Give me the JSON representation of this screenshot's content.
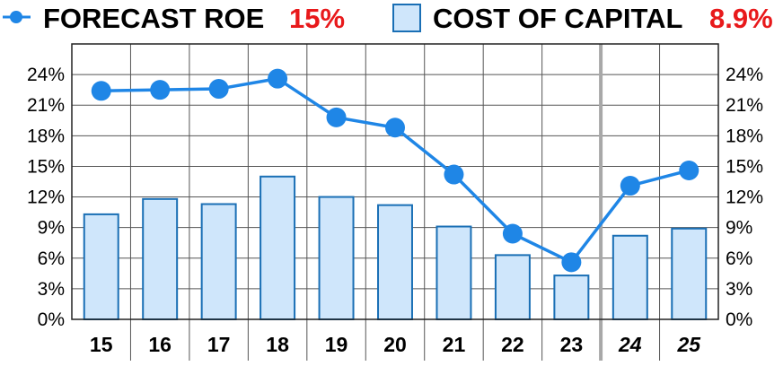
{
  "legend": {
    "line_label": "FORECAST ROE",
    "line_value": "15%",
    "bar_label": "COST OF CAPITAL",
    "bar_value": "8.9%"
  },
  "chart_data": {
    "type": "bar",
    "categories": [
      "15",
      "16",
      "17",
      "18",
      "19",
      "20",
      "21",
      "22",
      "23",
      "24",
      "25"
    ],
    "forecast_categories": [
      "24",
      "25"
    ],
    "series": [
      {
        "name": "COST OF CAPITAL",
        "type": "bar",
        "values": [
          10.3,
          11.8,
          11.3,
          14.0,
          12.0,
          11.2,
          9.1,
          6.3,
          4.3,
          8.2,
          8.9
        ]
      },
      {
        "name": "FORECAST ROE",
        "type": "line",
        "values": [
          22.4,
          22.5,
          22.6,
          23.6,
          19.8,
          18.8,
          14.2,
          8.4,
          5.6,
          13.1,
          14.6
        ]
      }
    ],
    "ylim": [
      0,
      27
    ],
    "yticks": [
      "0%",
      "3%",
      "6%",
      "9%",
      "12%",
      "15%",
      "18%",
      "21%",
      "24%"
    ],
    "grid": true,
    "colors": {
      "bar_fill": "#cfe6fb",
      "bar_stroke": "#1a6fb5",
      "line": "#1f86e6",
      "legend_value": "#e8191b",
      "grid": "#555555",
      "divider": "#a8a8a8"
    }
  }
}
